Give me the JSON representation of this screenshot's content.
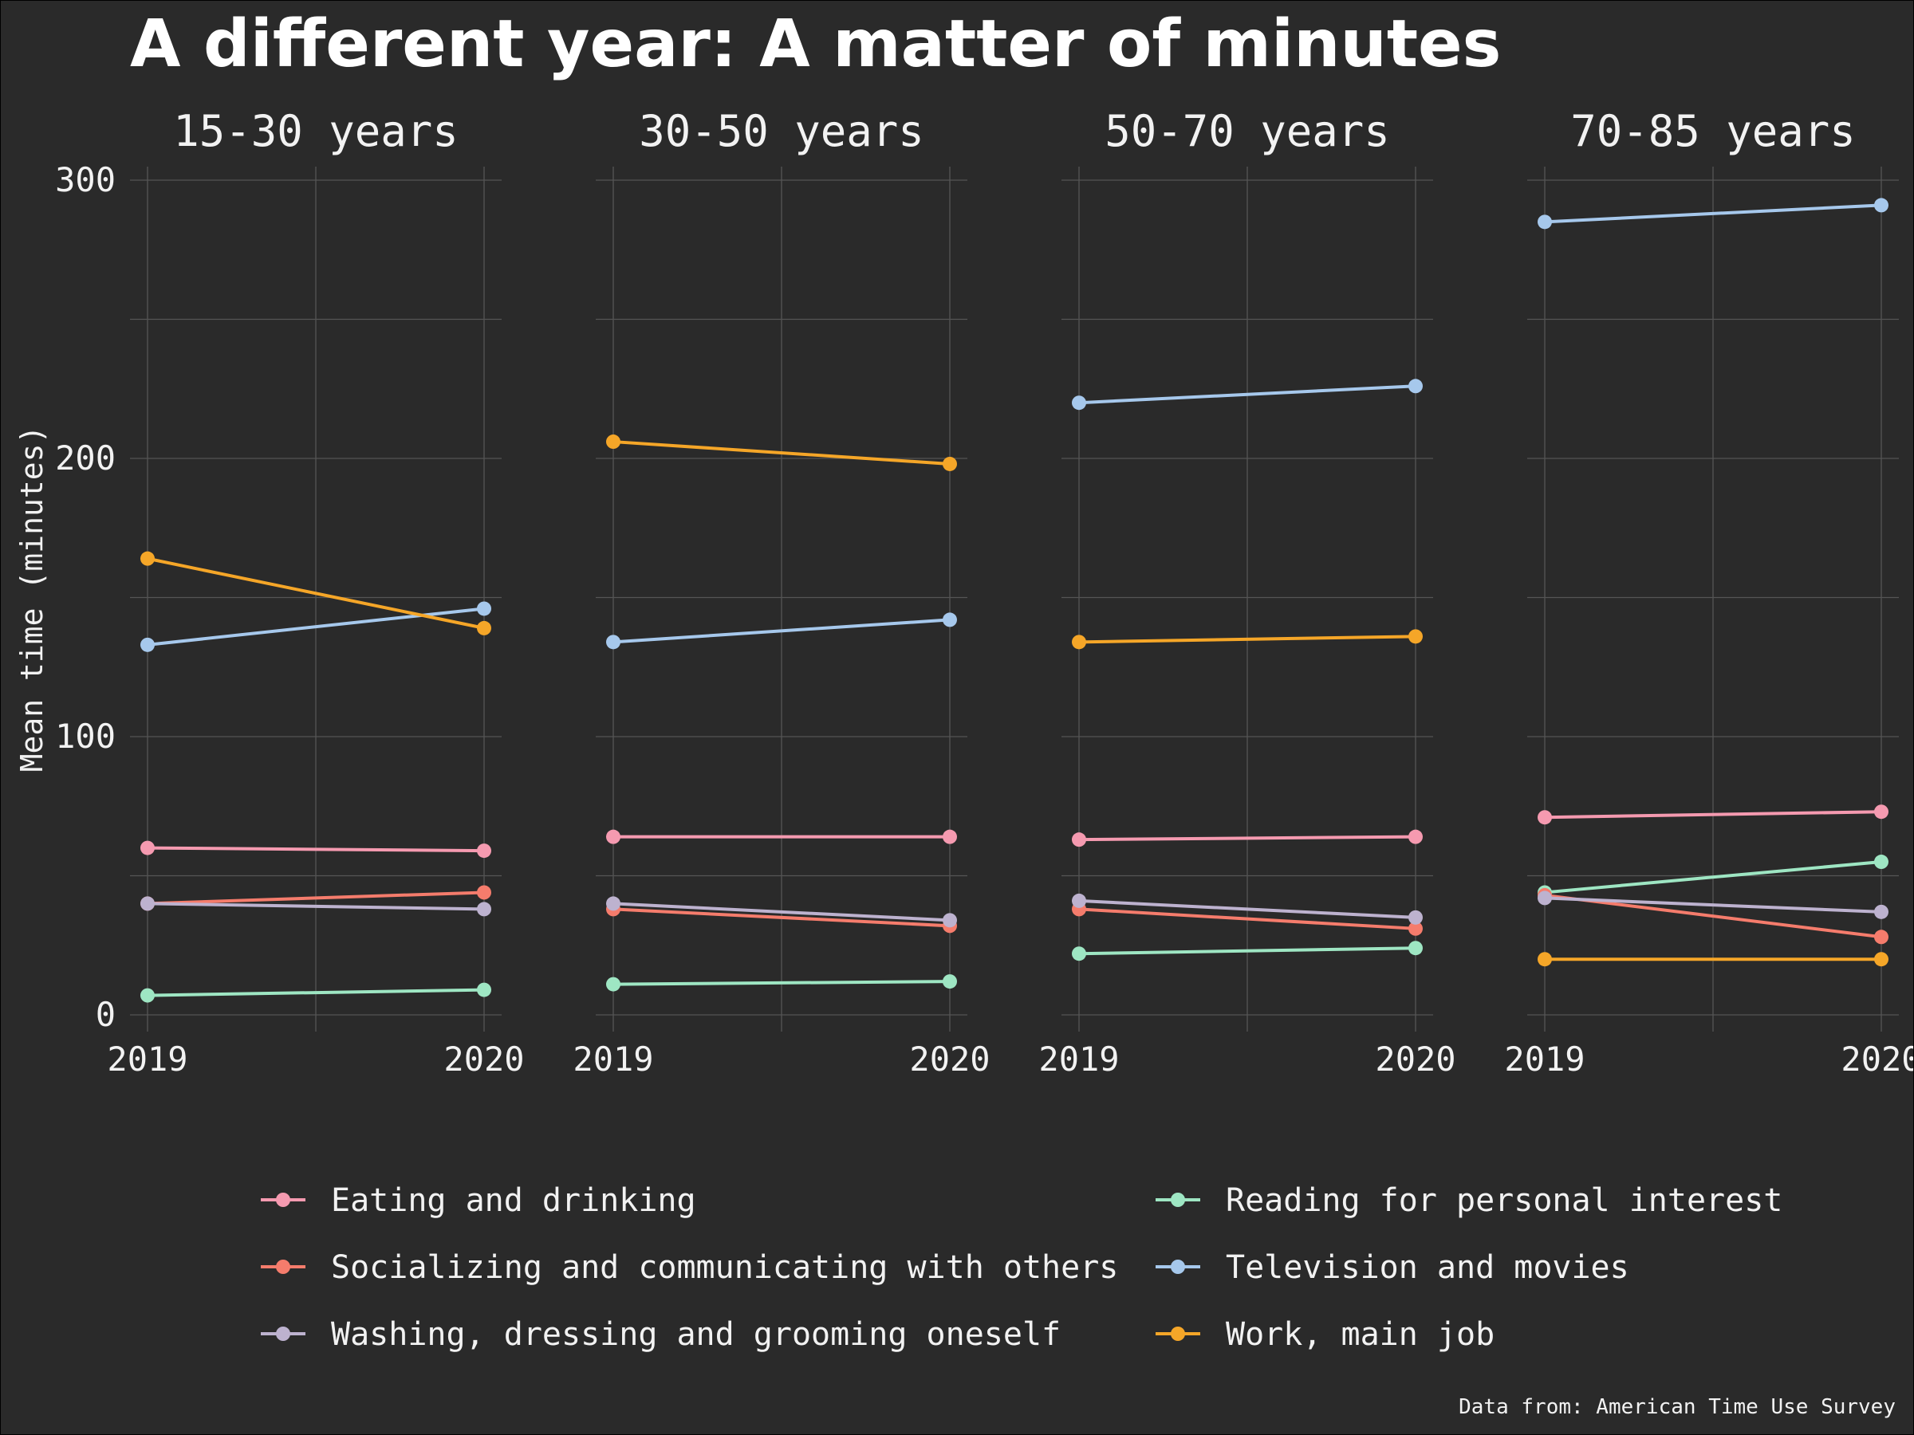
{
  "chart_data": {
    "type": "line",
    "title": "A different year: A matter of minutes",
    "ylabel": "Mean time (minutes)",
    "xlabel": "",
    "ylim": [
      0,
      300
    ],
    "yticks": [
      0,
      100,
      200,
      300
    ],
    "x": [
      "2019",
      "2020"
    ],
    "caption": "Data from: American Time Use Survey",
    "legend_position": "bottom",
    "activities": [
      {
        "name": "Eating and drinking",
        "color": "#f59ab0"
      },
      {
        "name": "Reading for personal interest",
        "color": "#9ee6c3"
      },
      {
        "name": "Socializing and communicating with others",
        "color": "#f57c6c"
      },
      {
        "name": "Television and movies",
        "color": "#a6c8ec"
      },
      {
        "name": "Washing, dressing and grooming oneself",
        "color": "#bdb2cf"
      },
      {
        "name": "Work, main job",
        "color": "#f5a628"
      }
    ],
    "panels": [
      {
        "label": "15-30 years",
        "series": {
          "Eating and drinking": [
            60,
            59
          ],
          "Reading for personal interest": [
            7,
            9
          ],
          "Socializing and communicating with others": [
            40,
            44
          ],
          "Television and movies": [
            133,
            146
          ],
          "Washing, dressing and grooming oneself": [
            40,
            38
          ],
          "Work, main job": [
            164,
            139
          ]
        }
      },
      {
        "label": "30-50 years",
        "series": {
          "Eating and drinking": [
            64,
            64
          ],
          "Reading for personal interest": [
            11,
            12
          ],
          "Socializing and communicating with others": [
            38,
            32
          ],
          "Television and movies": [
            134,
            142
          ],
          "Washing, dressing and grooming oneself": [
            40,
            34
          ],
          "Work, main job": [
            206,
            198
          ]
        }
      },
      {
        "label": "50-70 years",
        "series": {
          "Eating and drinking": [
            63,
            64
          ],
          "Reading for personal interest": [
            22,
            24
          ],
          "Socializing and communicating with others": [
            38,
            31
          ],
          "Television and movies": [
            220,
            226
          ],
          "Washing, dressing and grooming oneself": [
            41,
            35
          ],
          "Work, main job": [
            134,
            136
          ]
        }
      },
      {
        "label": "70-85 years",
        "series": {
          "Eating and drinking": [
            71,
            73
          ],
          "Reading for personal interest": [
            44,
            55
          ],
          "Socializing and communicating with others": [
            43,
            28
          ],
          "Television and movies": [
            285,
            291
          ],
          "Washing, dressing and grooming oneself": [
            42,
            37
          ],
          "Work, main job": [
            20,
            20
          ]
        }
      }
    ]
  }
}
